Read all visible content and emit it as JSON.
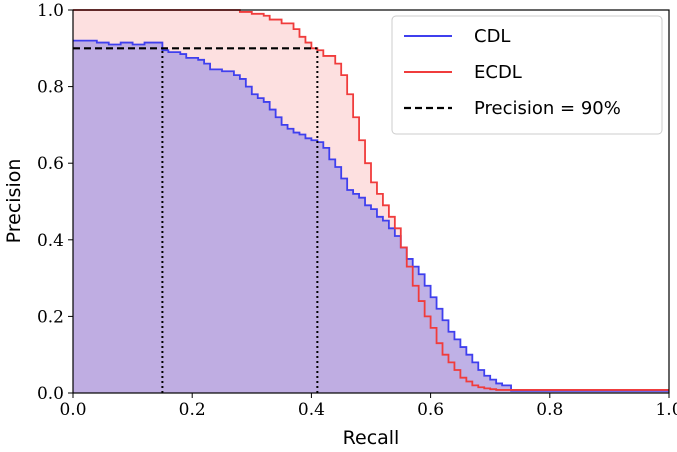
{
  "chart_data": {
    "type": "line",
    "xlabel": "Recall",
    "ylabel": "Precision",
    "xlim": [
      0.0,
      1.0
    ],
    "ylim": [
      0.0,
      1.0
    ],
    "xticks": [
      "0.0",
      "0.2",
      "0.4",
      "0.6",
      "0.8",
      "1.0"
    ],
    "yticks": [
      "0.0",
      "0.2",
      "0.4",
      "0.6",
      "0.8",
      "1.0"
    ],
    "grid": false,
    "legend_position": "top-right",
    "series": [
      {
        "name": "CDL",
        "color": "#3f3fee",
        "fill": "#b4a3e2",
        "step": true,
        "x": [
          0.0,
          0.04,
          0.06,
          0.08,
          0.1,
          0.12,
          0.15,
          0.16,
          0.18,
          0.19,
          0.2,
          0.21,
          0.22,
          0.23,
          0.25,
          0.27,
          0.28,
          0.29,
          0.3,
          0.31,
          0.32,
          0.33,
          0.34,
          0.35,
          0.36,
          0.37,
          0.38,
          0.39,
          0.4,
          0.41,
          0.42,
          0.43,
          0.44,
          0.45,
          0.46,
          0.47,
          0.48,
          0.49,
          0.5,
          0.51,
          0.52,
          0.53,
          0.54,
          0.55,
          0.56,
          0.57,
          0.58,
          0.59,
          0.6,
          0.61,
          0.62,
          0.63,
          0.64,
          0.65,
          0.66,
          0.67,
          0.68,
          0.69,
          0.7,
          0.71,
          0.72,
          0.735,
          0.735,
          1.0
        ],
        "y": [
          0.92,
          0.915,
          0.91,
          0.915,
          0.91,
          0.915,
          0.895,
          0.89,
          0.885,
          0.875,
          0.875,
          0.87,
          0.86,
          0.845,
          0.84,
          0.83,
          0.82,
          0.8,
          0.78,
          0.77,
          0.76,
          0.74,
          0.72,
          0.7,
          0.69,
          0.68,
          0.675,
          0.665,
          0.66,
          0.655,
          0.64,
          0.61,
          0.59,
          0.56,
          0.53,
          0.52,
          0.51,
          0.49,
          0.48,
          0.46,
          0.45,
          0.43,
          0.41,
          0.38,
          0.35,
          0.33,
          0.31,
          0.28,
          0.25,
          0.22,
          0.19,
          0.16,
          0.14,
          0.12,
          0.1,
          0.08,
          0.06,
          0.045,
          0.035,
          0.025,
          0.02,
          0.012,
          0.006,
          0.006
        ]
      },
      {
        "name": "ECDL",
        "color": "#f03c3c",
        "fill": "#fde0e0",
        "step": true,
        "x": [
          0.0,
          0.28,
          0.3,
          0.32,
          0.33,
          0.35,
          0.37,
          0.38,
          0.39,
          0.4,
          0.41,
          0.42,
          0.44,
          0.45,
          0.46,
          0.47,
          0.48,
          0.49,
          0.5,
          0.51,
          0.52,
          0.53,
          0.54,
          0.55,
          0.56,
          0.57,
          0.58,
          0.59,
          0.6,
          0.61,
          0.62,
          0.63,
          0.64,
          0.65,
          0.66,
          0.67,
          0.68,
          0.69,
          0.7,
          0.71,
          1.0
        ],
        "y": [
          1.0,
          0.995,
          0.99,
          0.985,
          0.975,
          0.965,
          0.95,
          0.93,
          0.915,
          0.9,
          0.895,
          0.88,
          0.86,
          0.83,
          0.78,
          0.72,
          0.66,
          0.6,
          0.55,
          0.52,
          0.49,
          0.46,
          0.43,
          0.38,
          0.33,
          0.28,
          0.24,
          0.2,
          0.17,
          0.13,
          0.1,
          0.08,
          0.06,
          0.04,
          0.03,
          0.02,
          0.015,
          0.012,
          0.01,
          0.008,
          0.008
        ]
      },
      {
        "name": "Precision = 90%",
        "color": "#000000",
        "dashed": true,
        "x": [
          0.0,
          0.41
        ],
        "y": [
          0.9,
          0.9
        ]
      }
    ],
    "reference_lines": [
      {
        "x": 0.15,
        "y_top": 0.9
      },
      {
        "x": 0.41,
        "y_top": 0.9
      }
    ]
  }
}
